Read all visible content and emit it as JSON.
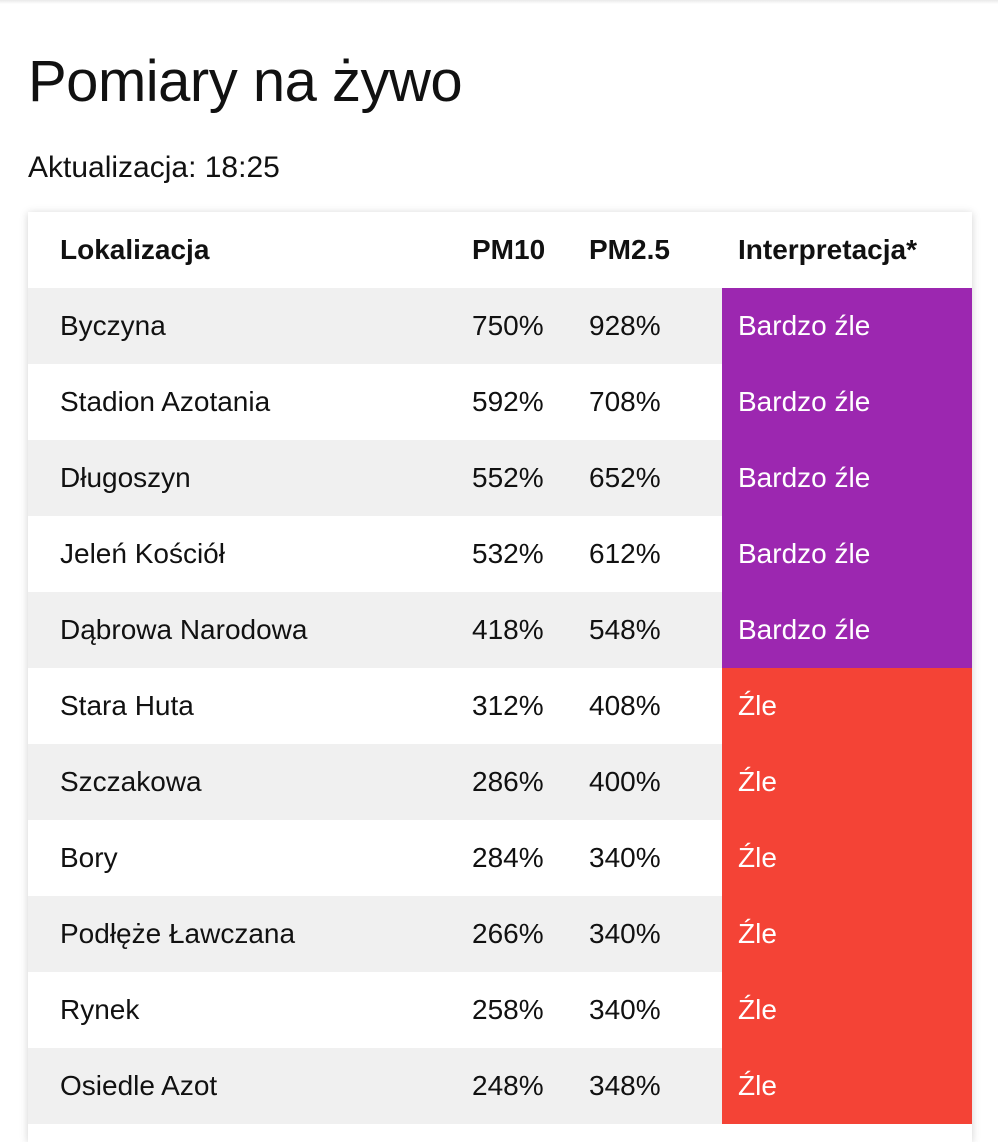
{
  "page": {
    "title": "Pomiary na żywo",
    "update_label": "Aktualizacja: 18:25"
  },
  "colors": {
    "very_bad": "#9c27b0",
    "bad": "#f44336"
  },
  "table": {
    "headers": {
      "location": "Lokalizacja",
      "pm10": "PM10",
      "pm25": "PM2.5",
      "interpretation": "Interpretacja*"
    },
    "rows": [
      {
        "location": "Byczyna",
        "pm10": "750%",
        "pm25": "928%",
        "interpretation": "Bardzo źle",
        "level": "very_bad"
      },
      {
        "location": "Stadion Azotania",
        "pm10": "592%",
        "pm25": "708%",
        "interpretation": "Bardzo źle",
        "level": "very_bad"
      },
      {
        "location": "Długoszyn",
        "pm10": "552%",
        "pm25": "652%",
        "interpretation": "Bardzo źle",
        "level": "very_bad"
      },
      {
        "location": "Jeleń Kościół",
        "pm10": "532%",
        "pm25": "612%",
        "interpretation": "Bardzo źle",
        "level": "very_bad"
      },
      {
        "location": "Dąbrowa Narodowa",
        "pm10": "418%",
        "pm25": "548%",
        "interpretation": "Bardzo źle",
        "level": "very_bad"
      },
      {
        "location": "Stara Huta",
        "pm10": "312%",
        "pm25": "408%",
        "interpretation": "Źle",
        "level": "bad"
      },
      {
        "location": "Szczakowa",
        "pm10": "286%",
        "pm25": "400%",
        "interpretation": "Źle",
        "level": "bad"
      },
      {
        "location": "Bory",
        "pm10": "284%",
        "pm25": "340%",
        "interpretation": "Źle",
        "level": "bad"
      },
      {
        "location": "Podłęże Ławczana",
        "pm10": "266%",
        "pm25": "340%",
        "interpretation": "Źle",
        "level": "bad"
      },
      {
        "location": "Rynek",
        "pm10": "258%",
        "pm25": "340%",
        "interpretation": "Źle",
        "level": "bad"
      },
      {
        "location": "Osiedle Azot",
        "pm10": "248%",
        "pm25": "348%",
        "interpretation": "Źle",
        "level": "bad"
      }
    ]
  }
}
